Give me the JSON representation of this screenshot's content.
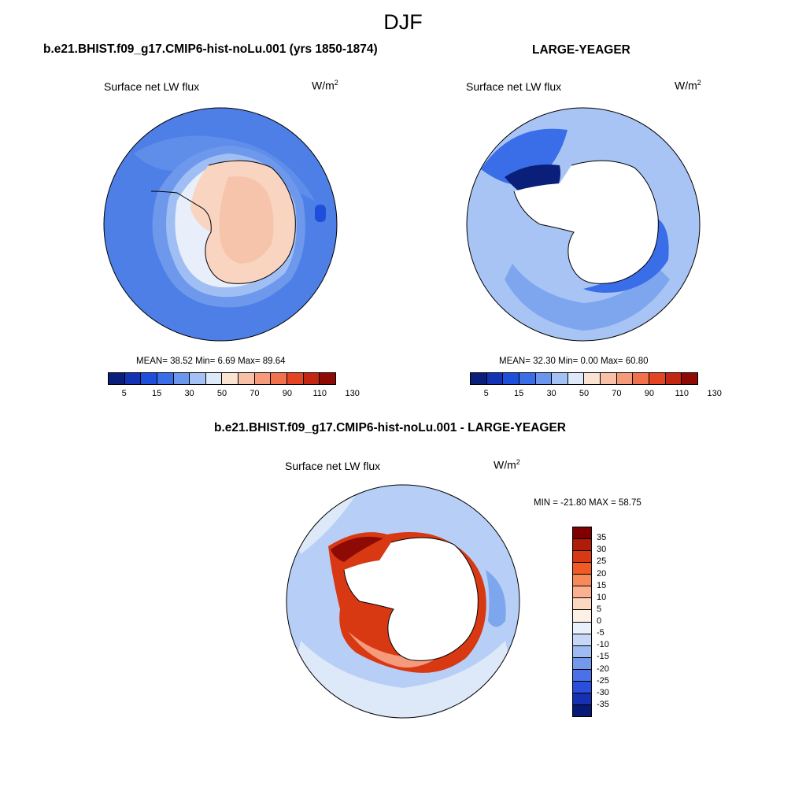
{
  "title": "DJF",
  "panels": [
    {
      "title": "b.e21.BHIST.f09_g17.CMIP6-hist-noLu.001 (yrs 1850-1874)",
      "variable": "Surface net LW flux",
      "units": "W/m",
      "units_sup": "2",
      "stats": "MEAN=  38.52  Min=   6.69  Max=  89.64",
      "colorbar": {
        "ticks": [
          "5",
          "15",
          "30",
          "50",
          "70",
          "90",
          "110",
          "130"
        ],
        "colors": [
          "#0a1f7a",
          "#1432b4",
          "#1e4fdc",
          "#3a6ee8",
          "#6a96ee",
          "#a3c1f5",
          "#dde9f8",
          "#fbe3d4",
          "#f8c0a6",
          "#f59a7a",
          "#f0714c",
          "#e44324",
          "#c32612",
          "#8e0a04"
        ]
      }
    },
    {
      "title": "LARGE-YEAGER",
      "variable": "Surface net LW flux",
      "units": "W/m",
      "units_sup": "2",
      "stats": "MEAN=  32.30  Min=   0.00  Max=  60.80",
      "colorbar": {
        "ticks": [
          "5",
          "15",
          "30",
          "50",
          "70",
          "90",
          "110",
          "130"
        ],
        "colors": [
          "#0a1f7a",
          "#1432b4",
          "#1e4fdc",
          "#3a6ee8",
          "#6a96ee",
          "#a3c1f5",
          "#dde9f8",
          "#fbe3d4",
          "#f8c0a6",
          "#f59a7a",
          "#f0714c",
          "#e44324",
          "#c32612",
          "#8e0a04"
        ]
      }
    },
    {
      "title": "b.e21.BHIST.f09_g17.CMIP6-hist-noLu.001 - LARGE-YEAGER",
      "variable": "Surface net LW flux",
      "units": "W/m",
      "units_sup": "2",
      "stats": "MIN = -21.80 MAX =  58.75",
      "colorbar": {
        "ticks": [
          "35",
          "30",
          "25",
          "20",
          "15",
          "10",
          "5",
          "0",
          "-5",
          "-10",
          "-15",
          "-20",
          "-25",
          "-30",
          "-35"
        ],
        "colors": [
          "#7e0000",
          "#b01c08",
          "#d83812",
          "#f05a24",
          "#f88a5a",
          "#fbb090",
          "#fdd8c0",
          "#fdf0e4",
          "#e8f0fb",
          "#c6d8f6",
          "#9fbcf2",
          "#7499ec",
          "#4a72e6",
          "#2a4fdc",
          "#1530b0",
          "#071a78"
        ]
      }
    }
  ],
  "map_colors": {
    "ocean_p1": "#4d7fe6",
    "ocean_p1_mid": "#6d98ec",
    "ocean_p1_light": "#9fbff4",
    "land_p1": "#f9d4c0",
    "land_p1_edge": "#e8eefa",
    "ocean_p2": "#a8c4f4",
    "ocean_p2_mid": "#7ea6ee",
    "ocean_p2_dark": "#3a6ee8",
    "ocean_p2_darkest": "#0a1f7a",
    "ocean_p3": "#b7cff6",
    "ocean_p3_light": "#dde9f8",
    "ocean_p3_blue": "#7ea6ee",
    "ring_p3": "#d83812",
    "ring_p3_dark": "#8e0a04",
    "ring_p3_light": "#f59a7a",
    "land_white": "#ffffff"
  }
}
